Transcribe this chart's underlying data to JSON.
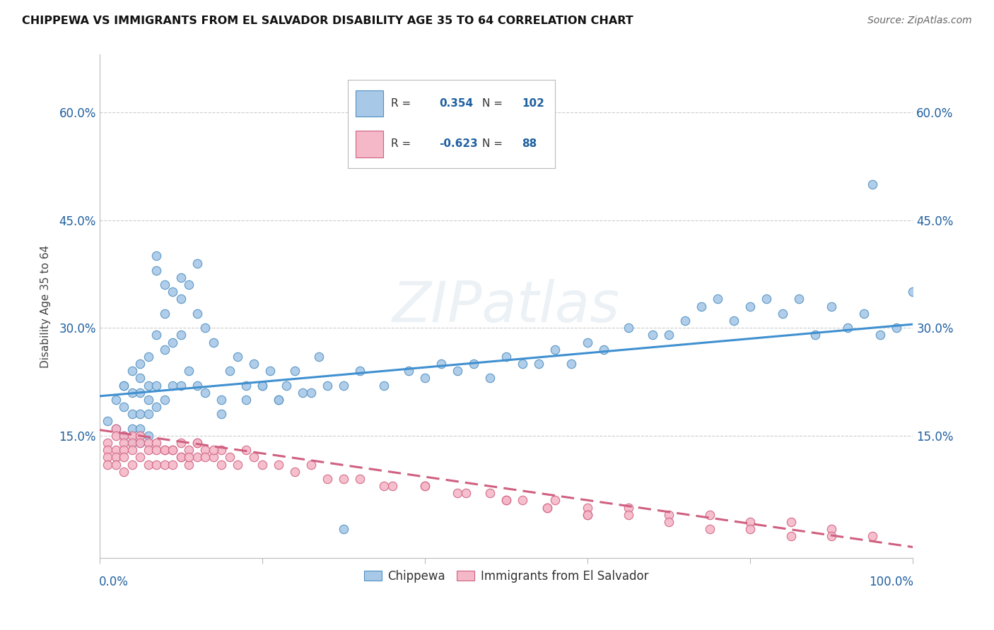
{
  "title": "CHIPPEWA VS IMMIGRANTS FROM EL SALVADOR DISABILITY AGE 35 TO 64 CORRELATION CHART",
  "source": "Source: ZipAtlas.com",
  "ylabel": "Disability Age 35 to 64",
  "ytick_labels": [
    "15.0%",
    "30.0%",
    "45.0%",
    "60.0%"
  ],
  "ytick_values": [
    0.15,
    0.3,
    0.45,
    0.6
  ],
  "color_blue": "#a8c8e8",
  "color_pink": "#f4b8c8",
  "color_blue_edge": "#5090c0",
  "color_pink_edge": "#d06080",
  "color_blue_line": "#4090d0",
  "color_pink_line": "#d06080",
  "color_text_blue": "#2060a0",
  "watermark": "ZIPatlas",
  "xlim": [
    0.0,
    1.0
  ],
  "ylim": [
    -0.02,
    0.68
  ],
  "blue_line_y_start": 0.205,
  "blue_line_y_end": 0.305,
  "pink_line_y_start": 0.158,
  "pink_line_y_end": -0.005,
  "chippewa_x": [
    0.01,
    0.02,
    0.02,
    0.03,
    0.03,
    0.03,
    0.04,
    0.04,
    0.04,
    0.04,
    0.05,
    0.05,
    0.05,
    0.05,
    0.05,
    0.06,
    0.06,
    0.06,
    0.06,
    0.07,
    0.07,
    0.07,
    0.07,
    0.08,
    0.08,
    0.08,
    0.09,
    0.09,
    0.09,
    0.1,
    0.1,
    0.1,
    0.11,
    0.11,
    0.12,
    0.12,
    0.13,
    0.13,
    0.14,
    0.15,
    0.16,
    0.17,
    0.18,
    0.19,
    0.2,
    0.21,
    0.22,
    0.23,
    0.25,
    0.27,
    0.3,
    0.32,
    0.35,
    0.38,
    0.4,
    0.42,
    0.44,
    0.46,
    0.48,
    0.5,
    0.52,
    0.54,
    0.56,
    0.58,
    0.6,
    0.62,
    0.65,
    0.68,
    0.7,
    0.72,
    0.74,
    0.76,
    0.78,
    0.8,
    0.82,
    0.84,
    0.86,
    0.88,
    0.9,
    0.92,
    0.94,
    0.96,
    0.98,
    1.0,
    0.5,
    0.95,
    0.1,
    0.08,
    0.07,
    0.06,
    0.05,
    0.04,
    0.03,
    0.12,
    0.15,
    0.18,
    0.2,
    0.22,
    0.24,
    0.26,
    0.28,
    0.3
  ],
  "chippewa_y": [
    0.17,
    0.2,
    0.16,
    0.22,
    0.19,
    0.15,
    0.21,
    0.18,
    0.16,
    0.14,
    0.23,
    0.21,
    0.18,
    0.16,
    0.14,
    0.22,
    0.2,
    0.18,
    0.15,
    0.4,
    0.38,
    0.22,
    0.19,
    0.36,
    0.32,
    0.2,
    0.35,
    0.28,
    0.22,
    0.37,
    0.34,
    0.22,
    0.36,
    0.24,
    0.39,
    0.22,
    0.3,
    0.21,
    0.28,
    0.18,
    0.24,
    0.26,
    0.2,
    0.25,
    0.22,
    0.24,
    0.2,
    0.22,
    0.21,
    0.26,
    0.22,
    0.24,
    0.22,
    0.24,
    0.23,
    0.25,
    0.24,
    0.25,
    0.23,
    0.26,
    0.25,
    0.25,
    0.27,
    0.25,
    0.28,
    0.27,
    0.3,
    0.29,
    0.29,
    0.31,
    0.33,
    0.34,
    0.31,
    0.33,
    0.34,
    0.32,
    0.34,
    0.29,
    0.33,
    0.3,
    0.32,
    0.29,
    0.3,
    0.35,
    0.59,
    0.5,
    0.29,
    0.27,
    0.29,
    0.26,
    0.25,
    0.24,
    0.22,
    0.32,
    0.2,
    0.22,
    0.22,
    0.2,
    0.24,
    0.21,
    0.22,
    0.02
  ],
  "salvador_x": [
    0.01,
    0.01,
    0.01,
    0.01,
    0.02,
    0.02,
    0.02,
    0.02,
    0.02,
    0.03,
    0.03,
    0.03,
    0.03,
    0.03,
    0.04,
    0.04,
    0.04,
    0.04,
    0.05,
    0.05,
    0.05,
    0.06,
    0.06,
    0.06,
    0.07,
    0.07,
    0.07,
    0.08,
    0.08,
    0.09,
    0.09,
    0.1,
    0.1,
    0.11,
    0.11,
    0.12,
    0.12,
    0.13,
    0.14,
    0.15,
    0.16,
    0.17,
    0.18,
    0.19,
    0.2,
    0.22,
    0.24,
    0.26,
    0.28,
    0.32,
    0.36,
    0.4,
    0.44,
    0.48,
    0.52,
    0.56,
    0.6,
    0.65,
    0.7,
    0.75,
    0.8,
    0.85,
    0.9,
    0.95,
    0.5,
    0.55,
    0.6,
    0.3,
    0.35,
    0.4,
    0.45,
    0.5,
    0.55,
    0.6,
    0.65,
    0.7,
    0.75,
    0.8,
    0.85,
    0.9,
    0.08,
    0.09,
    0.1,
    0.11,
    0.12,
    0.13,
    0.14,
    0.15
  ],
  "salvador_y": [
    0.14,
    0.13,
    0.12,
    0.11,
    0.16,
    0.15,
    0.13,
    0.12,
    0.11,
    0.15,
    0.14,
    0.13,
    0.12,
    0.1,
    0.15,
    0.14,
    0.13,
    0.11,
    0.15,
    0.14,
    0.12,
    0.14,
    0.13,
    0.11,
    0.14,
    0.13,
    0.11,
    0.13,
    0.11,
    0.13,
    0.11,
    0.14,
    0.12,
    0.13,
    0.11,
    0.14,
    0.12,
    0.13,
    0.12,
    0.13,
    0.12,
    0.11,
    0.13,
    0.12,
    0.11,
    0.11,
    0.1,
    0.11,
    0.09,
    0.09,
    0.08,
    0.08,
    0.07,
    0.07,
    0.06,
    0.06,
    0.05,
    0.05,
    0.04,
    0.04,
    0.03,
    0.03,
    0.02,
    0.01,
    0.06,
    0.05,
    0.04,
    0.09,
    0.08,
    0.08,
    0.07,
    0.06,
    0.05,
    0.04,
    0.04,
    0.03,
    0.02,
    0.02,
    0.01,
    0.01,
    0.13,
    0.13,
    0.12,
    0.12,
    0.14,
    0.12,
    0.13,
    0.11
  ]
}
